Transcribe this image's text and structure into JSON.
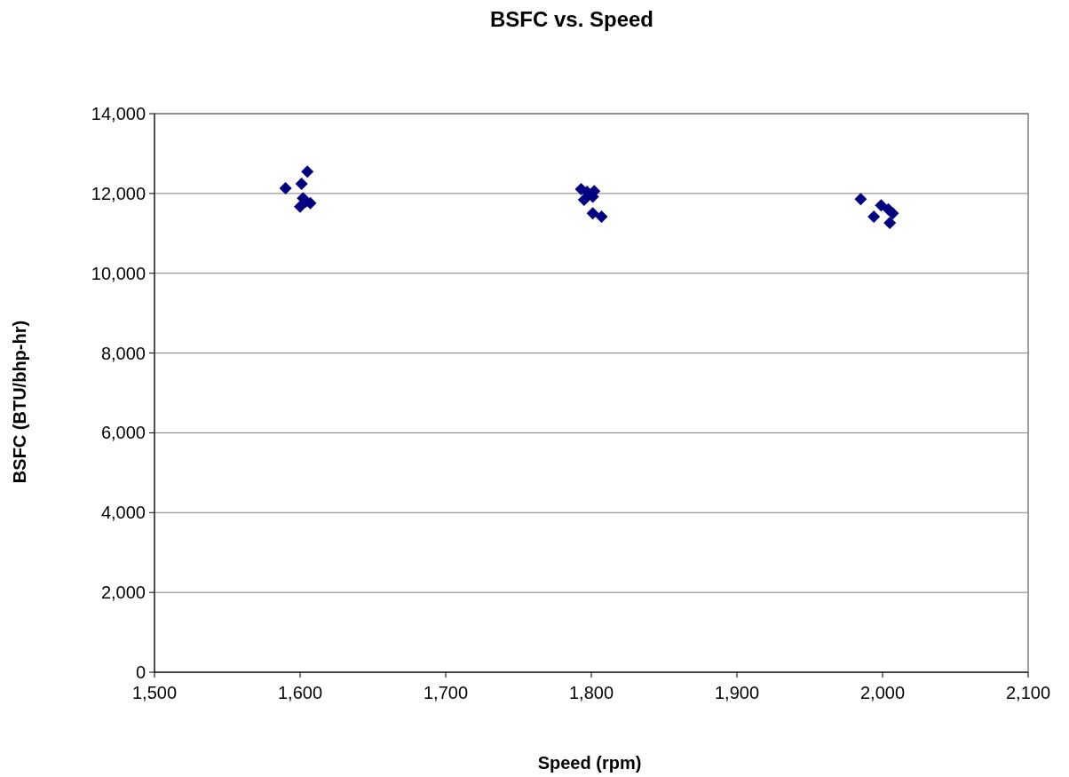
{
  "chart_data": {
    "type": "scatter",
    "title": "BSFC vs. Speed",
    "xlabel": "Speed (rpm)",
    "ylabel": "BSFC (BTU/bhp-hr)",
    "x": [
      1590,
      1601,
      1605,
      1602,
      1600,
      1607,
      1604,
      1793,
      1797,
      1802,
      1795,
      1801,
      1801,
      1807,
      1985,
      1994,
      2004,
      2007,
      2005,
      1999
    ],
    "values": [
      12130,
      12240,
      12550,
      11880,
      11670,
      11760,
      11800,
      12110,
      12040,
      12060,
      11840,
      11920,
      11500,
      11420,
      11860,
      11420,
      11600,
      11500,
      11260,
      11700
    ],
    "color": "#000080",
    "marker": "diamond",
    "xlim": [
      1500,
      2100
    ],
    "xticks": [
      {
        "value": 1500,
        "label": "1,500"
      },
      {
        "value": 1600,
        "label": "1,600"
      },
      {
        "value": 1700,
        "label": "1,700"
      },
      {
        "value": 1800,
        "label": "1,800"
      },
      {
        "value": 1900,
        "label": "1,900"
      },
      {
        "value": 2000,
        "label": "2,000"
      },
      {
        "value": 2100,
        "label": "2,100"
      }
    ],
    "ylim": [
      0,
      14000
    ],
    "yticks": [
      0,
      {
        "value": 2000,
        "label": "2,000"
      },
      {
        "value": 4000,
        "label": "4,000"
      },
      {
        "value": 6000,
        "label": "6,000"
      },
      {
        "value": 8000,
        "label": "8,000"
      },
      {
        "value": 10000,
        "label": "10,000"
      },
      {
        "value": 12000,
        "label": "12,000"
      },
      {
        "value": 14000,
        "label": "14,000"
      }
    ],
    "grid": "y"
  }
}
